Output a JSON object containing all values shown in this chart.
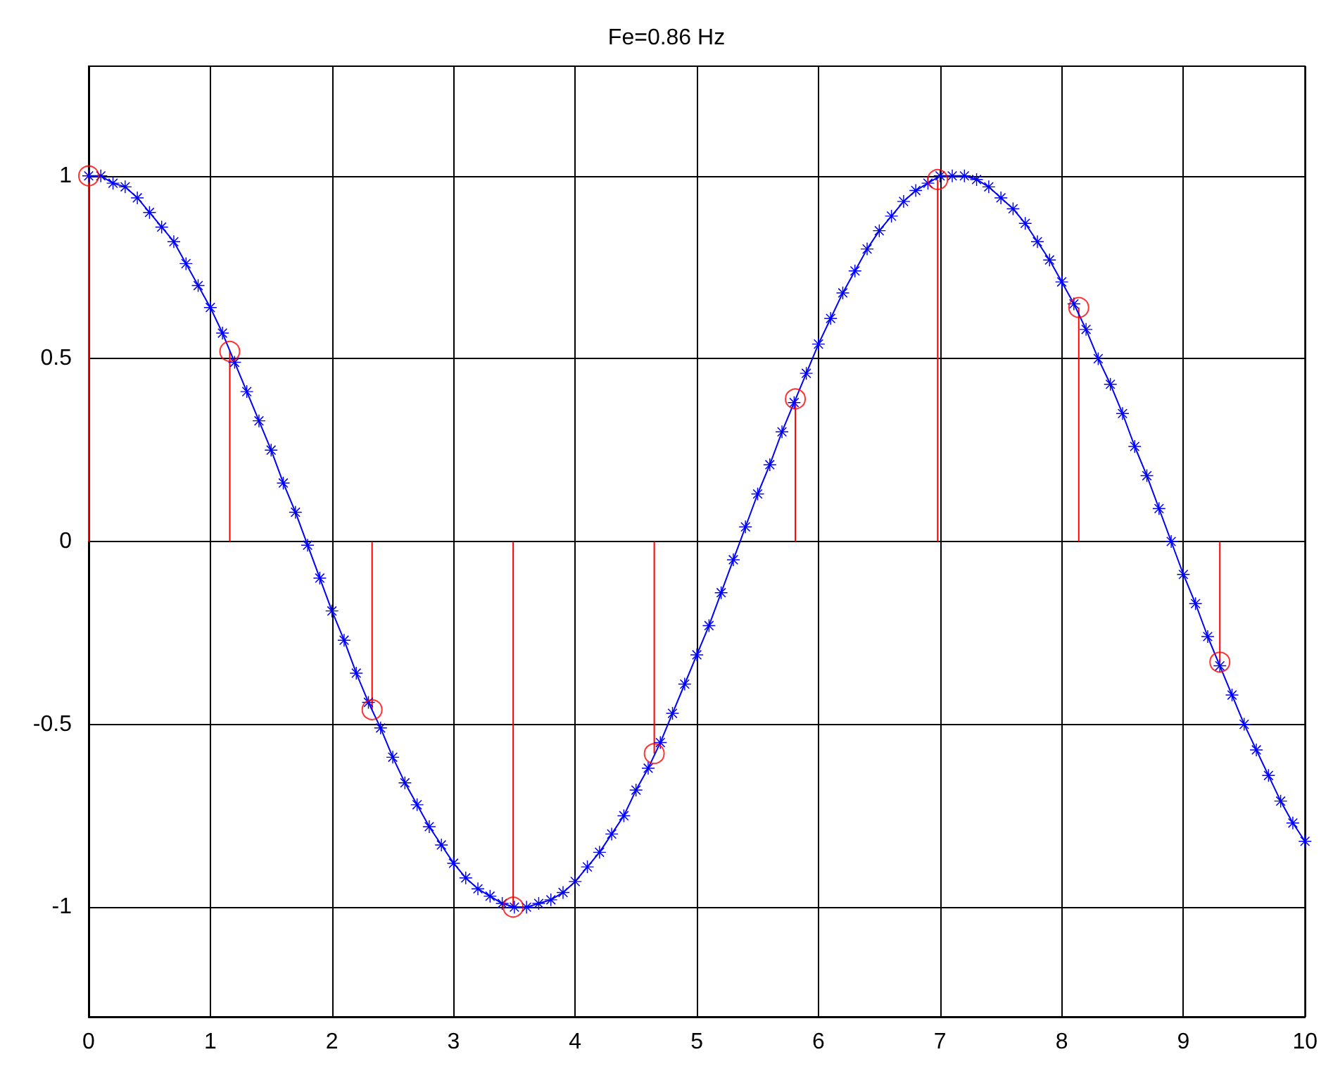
{
  "chart_data": {
    "type": "line",
    "title": "Fe=0.86 Hz",
    "xlim": [
      0,
      10
    ],
    "xticks": [
      0,
      1,
      2,
      3,
      4,
      5,
      6,
      7,
      8,
      9,
      10
    ],
    "ylim": [
      -1.3,
      1.3
    ],
    "yticks": [
      -1,
      -0.5,
      0,
      0.5,
      1
    ],
    "grid": true,
    "series": [
      {
        "color": "#0000ff",
        "marker": "star",
        "line_style": "solid",
        "x": [
          0,
          0.1,
          0.2,
          0.3,
          0.4,
          0.5,
          0.6,
          0.7,
          0.8,
          0.9,
          1,
          1.1,
          1.2,
          1.3,
          1.4,
          1.5,
          1.6,
          1.7,
          1.8,
          1.9,
          2,
          2.1,
          2.2,
          2.3,
          2.4,
          2.5,
          2.6,
          2.7,
          2.8,
          2.9,
          3,
          3.1,
          3.2,
          3.3,
          3.4,
          3.5,
          3.6,
          3.7,
          3.8,
          3.9,
          4,
          4.1,
          4.2,
          4.3,
          4.4,
          4.5,
          4.6,
          4.7,
          4.8,
          4.9,
          5,
          5.1,
          5.2,
          5.3,
          5.4,
          5.5,
          5.6,
          5.7,
          5.8,
          5.9,
          6,
          6.1,
          6.2,
          6.3,
          6.4,
          6.5,
          6.6,
          6.7,
          6.8,
          6.9,
          7,
          7.1,
          7.2,
          7.3,
          7.4,
          7.5,
          7.6,
          7.7,
          7.8,
          7.9,
          8,
          8.1,
          8.2,
          8.3,
          8.4,
          8.5,
          8.6,
          8.7,
          8.8,
          8.9,
          9,
          9.1,
          9.2,
          9.3,
          9.4,
          9.5,
          9.6,
          9.7,
          9.8,
          9.9,
          10
        ],
        "values": [
          1.0,
          1.0,
          0.98,
          0.97,
          0.94,
          0.9,
          0.86,
          0.82,
          0.76,
          0.7,
          0.64,
          0.57,
          0.49,
          0.41,
          0.33,
          0.25,
          0.16,
          0.08,
          -0.01,
          -0.1,
          -0.19,
          -0.27,
          -0.36,
          -0.44,
          -0.51,
          -0.59,
          -0.66,
          -0.72,
          -0.78,
          -0.83,
          -0.88,
          -0.92,
          -0.95,
          -0.97,
          -0.99,
          -1.0,
          -1.0,
          -0.99,
          -0.98,
          -0.96,
          -0.93,
          -0.89,
          -0.85,
          -0.8,
          -0.75,
          -0.68,
          -0.62,
          -0.55,
          -0.47,
          -0.39,
          -0.31,
          -0.23,
          -0.14,
          -0.05,
          0.04,
          0.13,
          0.21,
          0.3,
          0.38,
          0.46,
          0.54,
          0.61,
          0.68,
          0.74,
          0.8,
          0.85,
          0.89,
          0.93,
          0.96,
          0.98,
          1.0,
          1.0,
          1.0,
          0.99,
          0.97,
          0.94,
          0.91,
          0.87,
          0.82,
          0.77,
          0.71,
          0.65,
          0.58,
          0.5,
          0.43,
          0.35,
          0.26,
          0.18,
          0.09,
          0.0,
          -0.09,
          -0.17,
          -0.26,
          -0.34,
          -0.42,
          -0.5,
          -0.57,
          -0.64,
          -0.71,
          -0.77,
          -0.82
        ]
      },
      {
        "type": "lollipop",
        "color": "#ff0000",
        "marker": "circle",
        "x": [
          0,
          1.16,
          2.33,
          3.49,
          4.65,
          5.81,
          6.98,
          8.14,
          9.3
        ],
        "values": [
          1.0,
          0.52,
          -0.46,
          -1.0,
          -0.58,
          0.39,
          0.99,
          0.64,
          -0.33
        ]
      }
    ]
  }
}
